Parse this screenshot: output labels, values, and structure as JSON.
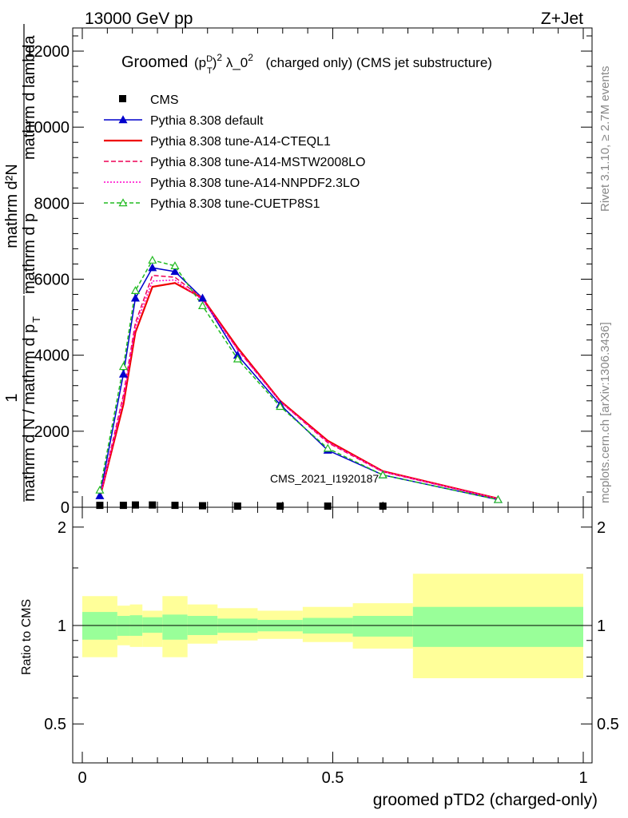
{
  "header": {
    "energy": "13000 GeV pp",
    "process": "Z+Jet",
    "watermark": "CMS_2021_I1920187"
  },
  "side": {
    "rivet": "Rivet 3.1.10, ≥ 2.7M events",
    "site": "mcplots.cern.ch [arXiv:1306.3436]"
  },
  "chart_data": [
    {
      "type": "line",
      "title": {
        "prefix": "Groomed",
        "formula": "(p_T^D)^2 λ_0^2",
        "rest": "(charged only) (CMS jet substructure)"
      },
      "ylabel": "1 / mathrm d N / mathrm d p_T mathrm d^2N / mathrm d p_T mathrm d lambda",
      "ylabel_parts": {
        "num1": "1",
        "den1": "mathrm d N / mathrm d p",
        "num2": "mathrm d²N",
        "den2": "mathrm d p",
        "den2b": "mathrm d lambda",
        "sub": "T"
      },
      "xlim": [
        0,
        1
      ],
      "ylim": [
        0,
        13000
      ],
      "yticks": [
        {
          "value": 0,
          "label": "0"
        },
        {
          "value": 2000,
          "label": "2000"
        },
        {
          "value": 4000,
          "label": "4000"
        },
        {
          "value": 6000,
          "label": "6000"
        },
        {
          "value": 8000,
          "label": "8000"
        },
        {
          "value": 10000,
          "label": "10000"
        },
        {
          "value": 12000,
          "label": "12000"
        }
      ],
      "legend_position": "top-left",
      "data": {
        "name": "CMS",
        "x": [
          0.035,
          0.082,
          0.106,
          0.14,
          0.185,
          0.24,
          0.31,
          0.395,
          0.49,
          0.6
        ],
        "y": [
          50,
          50,
          60,
          60,
          50,
          40,
          30,
          30,
          30,
          30
        ]
      },
      "series": [
        {
          "name": "Pythia 8.308 default",
          "color": "#0000cc",
          "dash": "",
          "marker": "triangle-filled",
          "x": [
            0.035,
            0.082,
            0.106,
            0.14,
            0.185,
            0.24,
            0.31,
            0.395,
            0.49,
            0.6,
            0.83
          ],
          "y": [
            300,
            3500,
            5500,
            6300,
            6200,
            5500,
            4000,
            2700,
            1500,
            850,
            200
          ]
        },
        {
          "name": "Pythia 8.308 tune-A14-CTEQL1",
          "color": "#ee0000",
          "dash": "",
          "marker": "none",
          "x": [
            0.035,
            0.082,
            0.106,
            0.14,
            0.185,
            0.24,
            0.31,
            0.395,
            0.49,
            0.6,
            0.83
          ],
          "y": [
            250,
            2700,
            4600,
            5800,
            5900,
            5500,
            4200,
            2800,
            1750,
            950,
            230
          ]
        },
        {
          "name": "Pythia 8.308 tune-A14-MSTW2008LO",
          "color": "#ee0055",
          "dash": "6,3",
          "marker": "none",
          "x": [
            0.035,
            0.082,
            0.106,
            0.14,
            0.185,
            0.24,
            0.31,
            0.395,
            0.49,
            0.6,
            0.83
          ],
          "y": [
            260,
            2950,
            4850,
            6100,
            6050,
            5500,
            4150,
            2780,
            1700,
            930,
            220
          ]
        },
        {
          "name": "Pythia 8.308 tune-A14-NNPDF2.3LO",
          "color": "#ff00cc",
          "dash": "2,2",
          "marker": "none",
          "x": [
            0.035,
            0.082,
            0.106,
            0.14,
            0.185,
            0.24,
            0.31,
            0.395,
            0.49,
            0.6,
            0.83
          ],
          "y": [
            255,
            2850,
            4750,
            5950,
            5980,
            5450,
            4150,
            2780,
            1720,
            940,
            225
          ]
        },
        {
          "name": "Pythia 8.308 tune-CUETP8S1",
          "color": "#22bb22",
          "dash": "5,3",
          "marker": "triangle-open",
          "x": [
            0.035,
            0.082,
            0.106,
            0.14,
            0.185,
            0.24,
            0.31,
            0.395,
            0.49,
            0.6,
            0.83
          ],
          "y": [
            450,
            3700,
            5700,
            6500,
            6350,
            5300,
            3900,
            2650,
            1550,
            850,
            200
          ]
        }
      ]
    },
    {
      "type": "area",
      "ylabel": "Ratio to CMS",
      "xlabel": "groomed pTD2 (charged-only)",
      "xlim": [
        0,
        1
      ],
      "ylim": [
        0.38,
        2.3
      ],
      "log_y": true,
      "reference_line": 1,
      "xticks": [
        {
          "value": 0,
          "label": "0"
        },
        {
          "value": 0.5,
          "label": "0.5"
        },
        {
          "value": 1,
          "label": "1"
        }
      ],
      "yticks": [
        {
          "value": 0.5,
          "label": "0.5"
        },
        {
          "value": 1,
          "label": "1"
        },
        {
          "value": 2,
          "label": "2"
        }
      ],
      "stat_band_color": "#99ff99",
      "total_band_color": "#ffff99",
      "bins": [
        {
          "x0": 0.0,
          "x1": 0.07,
          "stat": [
            0.905,
            1.1
          ],
          "total": [
            0.8,
            1.23
          ]
        },
        {
          "x0": 0.07,
          "x1": 0.095,
          "stat": [
            0.93,
            1.07
          ],
          "total": [
            0.87,
            1.15
          ]
        },
        {
          "x0": 0.095,
          "x1": 0.12,
          "stat": [
            0.93,
            1.075
          ],
          "total": [
            0.86,
            1.16
          ]
        },
        {
          "x0": 0.12,
          "x1": 0.16,
          "stat": [
            0.95,
            1.06
          ],
          "total": [
            0.86,
            1.11
          ]
        },
        {
          "x0": 0.16,
          "x1": 0.21,
          "stat": [
            0.905,
            1.08
          ],
          "total": [
            0.8,
            1.23
          ]
        },
        {
          "x0": 0.21,
          "x1": 0.27,
          "stat": [
            0.935,
            1.07
          ],
          "total": [
            0.88,
            1.16
          ]
        },
        {
          "x0": 0.27,
          "x1": 0.35,
          "stat": [
            0.95,
            1.05
          ],
          "total": [
            0.9,
            1.13
          ]
        },
        {
          "x0": 0.35,
          "x1": 0.44,
          "stat": [
            0.96,
            1.04
          ],
          "total": [
            0.91,
            1.11
          ]
        },
        {
          "x0": 0.44,
          "x1": 0.54,
          "stat": [
            0.945,
            1.055
          ],
          "total": [
            0.89,
            1.14
          ]
        },
        {
          "x0": 0.54,
          "x1": 0.66,
          "stat": [
            0.925,
            1.07
          ],
          "total": [
            0.85,
            1.17
          ]
        },
        {
          "x0": 0.66,
          "x1": 1.0,
          "stat": [
            0.86,
            1.14
          ],
          "total": [
            0.69,
            1.44
          ]
        }
      ]
    }
  ]
}
